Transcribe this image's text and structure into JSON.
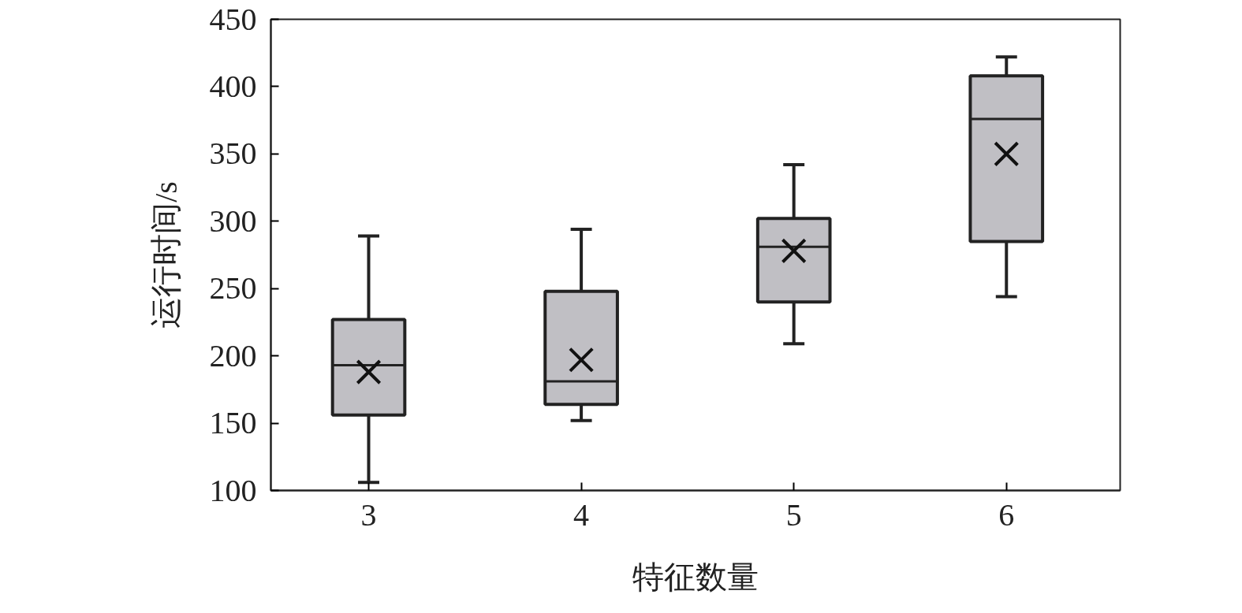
{
  "chart_data": {
    "type": "box",
    "xlabel": "特征数量",
    "ylabel": "运行时间/s",
    "categories": [
      "3",
      "4",
      "5",
      "6"
    ],
    "boxes": [
      {
        "low": 106,
        "q1": 156,
        "median": 193,
        "q3": 227,
        "high": 289,
        "mean": 188
      },
      {
        "low": 152,
        "q1": 164,
        "median": 181,
        "q3": 248,
        "high": 294,
        "mean": 197
      },
      {
        "low": 209,
        "q1": 240,
        "median": 281,
        "q3": 302,
        "high": 342,
        "mean": 278
      },
      {
        "low": 244,
        "q1": 285,
        "median": 376,
        "q3": 408,
        "high": 422,
        "mean": 350
      }
    ],
    "color": "#c0bfc4",
    "marker": "cross",
    "ylim": [
      100,
      450
    ],
    "yticks": [
      100,
      150,
      200,
      250,
      300,
      350,
      400,
      450
    ],
    "grid": false
  }
}
